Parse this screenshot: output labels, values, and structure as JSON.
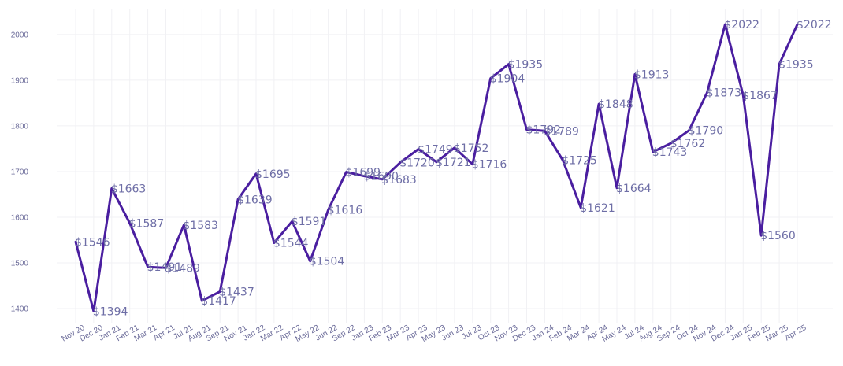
{
  "chart_data": {
    "type": "line",
    "title": "",
    "xlabel": "",
    "ylabel": "",
    "ylim": [
      1370,
      2055
    ],
    "yticks": [
      "1400",
      "1500",
      "1600",
      "1700",
      "1800",
      "1900",
      "2000"
    ],
    "grid": true,
    "legend": "none",
    "color": "#4a1ea0",
    "label_color": "#6e6ea6",
    "categories": [
      "Nov 20",
      "Dec 20",
      "Jan 21",
      "Feb 21",
      "Mar 21",
      "Apr 21",
      "Jul 21",
      "Aug 21",
      "Sep 21",
      "Nov 21",
      "Jan 22",
      "Mar 22",
      "Apr 22",
      "May 22",
      "Jun 22",
      "Sep 22",
      "Jan 23",
      "Feb 23",
      "Mar 23",
      "Apr 23",
      "May 23",
      "Jun 23",
      "Jul 23",
      "Oct 23",
      "Nov 23",
      "Dec 23",
      "Jan 24",
      "Feb 24",
      "Mar 24",
      "Apr 24",
      "May 24",
      "Jul 24",
      "Aug 24",
      "Sep 24",
      "Oct 24",
      "Nov 24",
      "Dec 24",
      "Jan 25",
      "Feb 25",
      "Mar 25",
      "Apr 25"
    ],
    "values": [
      1546,
      1394,
      1663,
      1587,
      1491,
      1489,
      1583,
      1417,
      1437,
      1639,
      1695,
      1544,
      1591,
      1504,
      1616,
      1699,
      1690,
      1683,
      1720,
      1749,
      1721,
      1752,
      1716,
      1904,
      1935,
      1792,
      1789,
      1725,
      1621,
      1848,
      1664,
      1913,
      1743,
      1762,
      1790,
      1873,
      2022,
      1867,
      1560,
      1935,
      2022
    ],
    "data_labels": [
      "$1546",
      "$1394",
      "$1663",
      "$1587",
      "$1491",
      "$1489",
      "$1583",
      "$1417",
      "$1437",
      "$1639",
      "$1695",
      "$1544",
      "$1591",
      "$1504",
      "$1616",
      "$1699",
      "$1690",
      "$1683",
      "$1720",
      "$1749",
      "$1721",
      "$1752",
      "$1716",
      "$1904",
      "$1935",
      "$1792",
      "$1789",
      "$1725",
      "$1621",
      "$1848",
      "$1664",
      "$1913",
      "$1743",
      "$1762",
      "$1790",
      "$1873",
      "$2022",
      "$1867",
      "$1560",
      "$1935",
      "$2022"
    ]
  }
}
